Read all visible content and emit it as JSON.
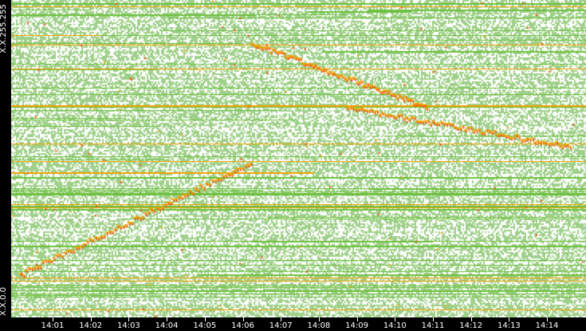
{
  "chart_data": {
    "type": "heatmap",
    "title": "",
    "xlabel": "",
    "ylabel": "",
    "y_top_label": "X.X.255.255",
    "y_bottom_label": "X.X.0.0",
    "x_ticks": [
      "14:01",
      "14:02",
      "14:03",
      "14:04",
      "14:05",
      "14:06",
      "14:07",
      "14:08",
      "14:09",
      "14:10",
      "14:11",
      "14:12",
      "14:13",
      "14:14"
    ],
    "colors": {
      "background": "#ffffff",
      "low": "#9fd08a",
      "mid": "#6cbf3c",
      "high": "#f0a000",
      "peak": "#ff3c00",
      "axis": "#000000"
    }
  }
}
